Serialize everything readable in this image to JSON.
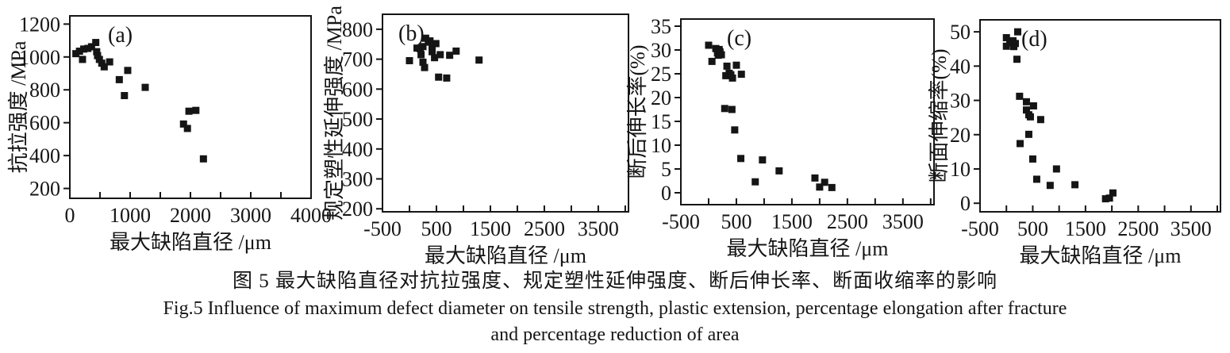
{
  "figure": {
    "caption_zh": "图 5  最大缺陷直径对抗拉强度、规定塑性延伸强度、断后伸长率、断面收缩率的影响",
    "caption_en_line1": "Fig.5  Influence of maximum defect diameter on tensile strength, plastic extension, percentage elongation after fracture",
    "caption_en_line2": "and percentage reduction of area"
  },
  "colors": {
    "ink": "#151515",
    "background": "#ffffff"
  },
  "chart_data": [
    {
      "type": "scatter",
      "tag": "(a)",
      "xlabel": "最大缺陷直径 /μm",
      "ylabel": "抗拉强度 /MPa",
      "marker": "filled-square",
      "legend": "none",
      "grid": false,
      "xlim": [
        0,
        4000
      ],
      "ylim": [
        140,
        1250
      ],
      "xticks": [
        0,
        1000,
        2000,
        3000,
        4000
      ],
      "xtick_minor_step": 500,
      "yticks": [
        200,
        400,
        600,
        800,
        1000,
        1200
      ],
      "points": [
        [
          100,
          1020
        ],
        [
          160,
          1035
        ],
        [
          230,
          1048
        ],
        [
          300,
          1052
        ],
        [
          210,
          985
        ],
        [
          360,
          1062
        ],
        [
          430,
          1088
        ],
        [
          445,
          1032
        ],
        [
          460,
          1008
        ],
        [
          490,
          985
        ],
        [
          530,
          962
        ],
        [
          570,
          940
        ],
        [
          660,
          970
        ],
        [
          820,
          862
        ],
        [
          960,
          918
        ],
        [
          905,
          765
        ],
        [
          1250,
          815
        ],
        [
          1975,
          670
        ],
        [
          2090,
          675
        ],
        [
          1885,
          592
        ],
        [
          1950,
          565
        ],
        [
          2215,
          380
        ]
      ]
    },
    {
      "type": "scatter",
      "tag": "(b)",
      "xlabel": "最大缺陷直径 /μm",
      "ylabel": "规定塑性延伸强度 /MPa",
      "marker": "filled-square",
      "legend": "none",
      "grid": false,
      "xlim": [
        -500,
        4060
      ],
      "ylim": [
        190,
        850
      ],
      "xticks": [
        -500,
        500,
        1500,
        2500,
        3500
      ],
      "xtick_minor_step": 500,
      "yticks": [
        200,
        300,
        400,
        500,
        600,
        700,
        800
      ],
      "points": [
        [
          0,
          695
        ],
        [
          140,
          737
        ],
        [
          200,
          735
        ],
        [
          250,
          742
        ],
        [
          215,
          715
        ],
        [
          250,
          690
        ],
        [
          280,
          672
        ],
        [
          300,
          770
        ],
        [
          350,
          757
        ],
        [
          380,
          761
        ],
        [
          420,
          745
        ],
        [
          420,
          725
        ],
        [
          465,
          705
        ],
        [
          490,
          752
        ],
        [
          570,
          715
        ],
        [
          745,
          713
        ],
        [
          865,
          727
        ],
        [
          540,
          640
        ],
        [
          690,
          637
        ],
        [
          1290,
          697
        ]
      ]
    },
    {
      "type": "scatter",
      "tag": "(c)",
      "xlabel": "最大缺陷直径 /μm",
      "ylabel": "断后伸长率(%)",
      "marker": "filled-square",
      "legend": "none",
      "grid": false,
      "xlim": [
        -500,
        4060
      ],
      "ylim": [
        -2.5,
        36.5
      ],
      "xticks": [
        -500,
        500,
        1500,
        2500,
        3500
      ],
      "xtick_minor_step": 500,
      "yticks": [
        0,
        5,
        10,
        15,
        20,
        25,
        30,
        35
      ],
      "points": [
        [
          0,
          31
        ],
        [
          60,
          27.6
        ],
        [
          130,
          30.3
        ],
        [
          160,
          29.4
        ],
        [
          175,
          28.9
        ],
        [
          190,
          30.1
        ],
        [
          205,
          29.6
        ],
        [
          230,
          29
        ],
        [
          330,
          26.6
        ],
        [
          310,
          24.6
        ],
        [
          370,
          25.1
        ],
        [
          400,
          24.8
        ],
        [
          430,
          24.1
        ],
        [
          500,
          26.8
        ],
        [
          590,
          24.9
        ],
        [
          290,
          17.7
        ],
        [
          420,
          17.5
        ],
        [
          470,
          13.2
        ],
        [
          580,
          7.2
        ],
        [
          840,
          2.3
        ],
        [
          970,
          6.9
        ],
        [
          1270,
          4.6
        ],
        [
          1915,
          3.1
        ],
        [
          2000,
          1.2
        ],
        [
          2090,
          2.2
        ],
        [
          2220,
          1.1
        ]
      ]
    },
    {
      "type": "scatter",
      "tag": "(d)",
      "xlabel": "最大缺陷直径 /μm",
      "ylabel": "断面伸缩率(%)",
      "marker": "filled-square",
      "legend": "none",
      "grid": false,
      "xlim": [
        -500,
        4060
      ],
      "ylim": [
        -2.5,
        53.5
      ],
      "xticks": [
        -500,
        500,
        1500,
        2500,
        3500
      ],
      "xtick_minor_step": 500,
      "yticks": [
        0,
        10,
        20,
        30,
        40,
        50
      ],
      "points": [
        [
          0,
          48.3
        ],
        [
          0,
          45.8
        ],
        [
          65,
          46.8
        ],
        [
          125,
          47.4
        ],
        [
          140,
          45.7
        ],
        [
          170,
          46.6
        ],
        [
          215,
          50
        ],
        [
          200,
          42
        ],
        [
          250,
          31.2
        ],
        [
          380,
          29.6
        ],
        [
          380,
          27.2
        ],
        [
          425,
          25.8
        ],
        [
          455,
          25.2
        ],
        [
          515,
          28.4
        ],
        [
          650,
          24.4
        ],
        [
          425,
          20.1
        ],
        [
          260,
          17.4
        ],
        [
          500,
          12.9
        ],
        [
          950,
          10
        ],
        [
          575,
          7
        ],
        [
          830,
          5.2
        ],
        [
          1300,
          5.4
        ],
        [
          1880,
          1.3
        ],
        [
          1955,
          1.5
        ],
        [
          2020,
          3
        ]
      ]
    }
  ]
}
